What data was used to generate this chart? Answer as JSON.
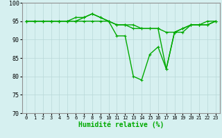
{
  "xlabel": "Humidité relative (%)",
  "ylabel": "",
  "bg_color": "#d6f0f0",
  "grid_color": "#b8d8d8",
  "line_color": "#00aa00",
  "xlim": [
    -0.5,
    23.5
  ],
  "ylim": [
    70,
    100
  ],
  "yticks": [
    70,
    75,
    80,
    85,
    90,
    95,
    100
  ],
  "xticks": [
    0,
    1,
    2,
    3,
    4,
    5,
    6,
    7,
    8,
    9,
    10,
    11,
    12,
    13,
    14,
    15,
    16,
    17,
    18,
    19,
    20,
    21,
    22,
    23
  ],
  "series": [
    [
      95,
      95,
      95,
      95,
      95,
      95,
      95,
      96,
      97,
      96,
      95,
      91,
      91,
      80,
      79,
      86,
      88,
      82,
      92,
      93,
      94,
      94,
      94,
      95
    ],
    [
      95,
      95,
      95,
      95,
      95,
      95,
      95,
      95,
      95,
      95,
      95,
      94,
      94,
      94,
      93,
      93,
      93,
      92,
      92,
      92,
      94,
      94,
      94,
      95
    ],
    [
      95,
      95,
      95,
      95,
      95,
      95,
      96,
      96,
      97,
      96,
      95,
      94,
      94,
      93,
      93,
      93,
      93,
      82,
      92,
      93,
      94,
      94,
      95,
      95
    ]
  ],
  "xlabel_fontsize": 7,
  "tick_fontsize": 6,
  "xtick_fontsize": 5,
  "line_width": 1.0,
  "marker": "+"
}
